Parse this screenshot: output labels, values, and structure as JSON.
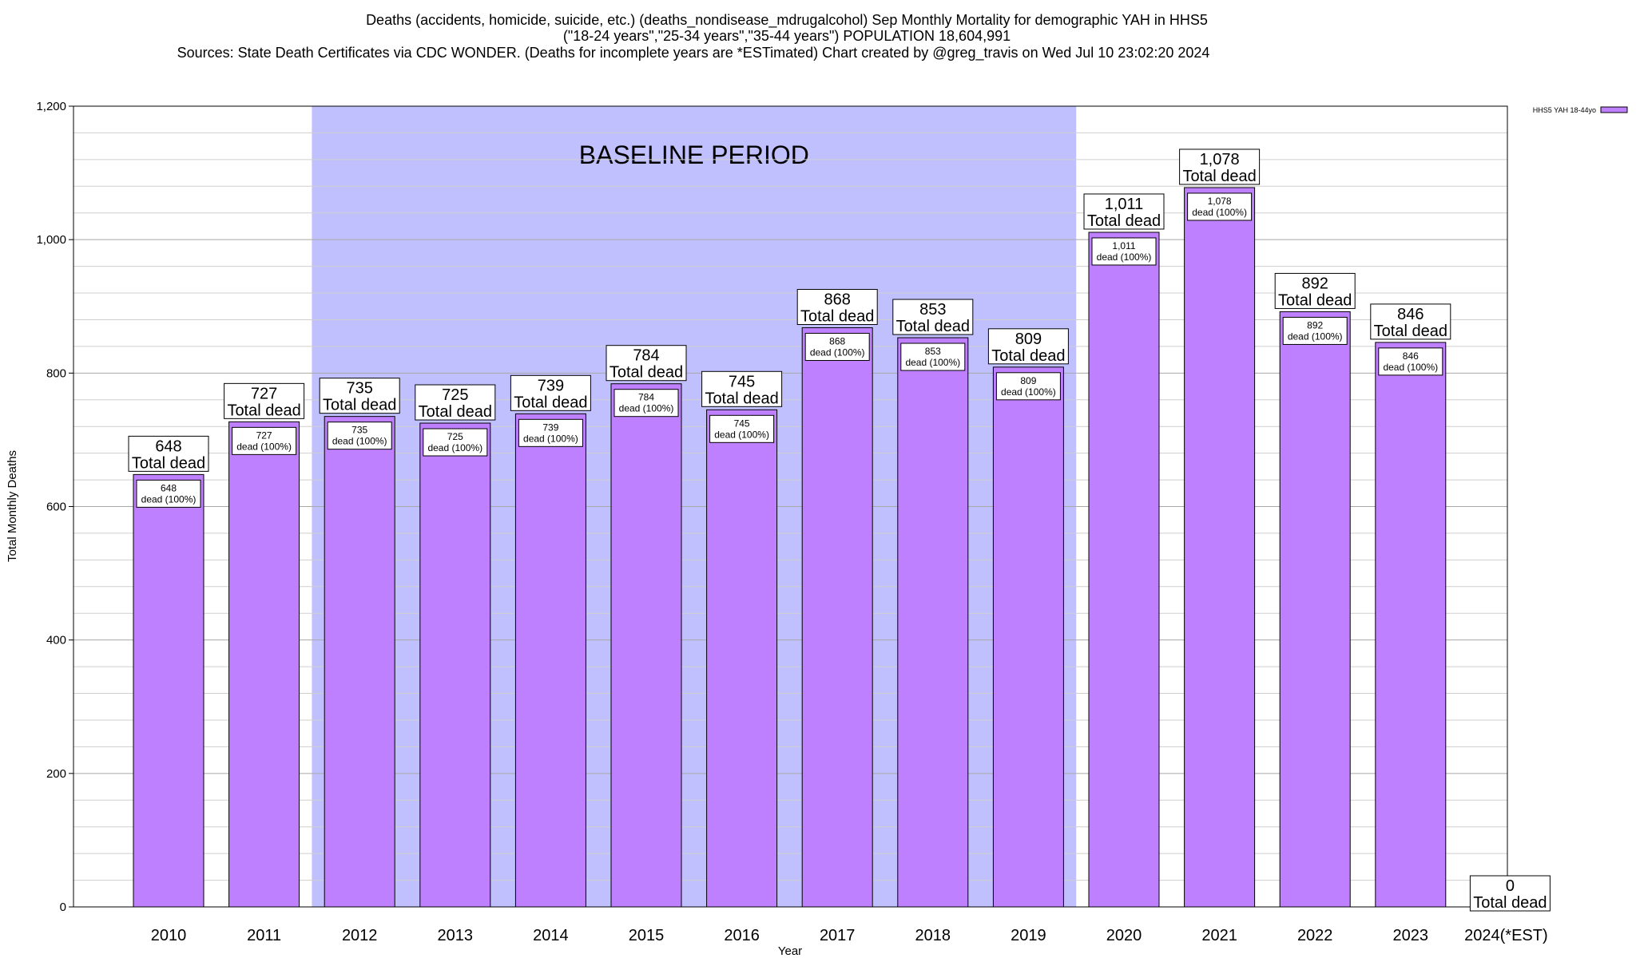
{
  "chart_data": {
    "type": "bar",
    "title_lines": [
      "Deaths (accidents, homicide, suicide, etc.) (deaths_nondisease_mdrugalcohol) Sep Monthly Mortality for demographic YAH in HHS5",
      "(\"18-24 years\",\"25-34 years\",\"35-44 years\") POPULATION 18,604,991",
      "Sources: State Death Certificates via CDC WONDER. (Deaths for incomplete years are *ESTimated)                Chart created by @greg_travis on Wed Jul 10 23:02:20 2024"
    ],
    "xlabel": "Year",
    "ylabel": "Total Monthly Deaths",
    "ylim": [
      0,
      1200
    ],
    "yticks": [
      0,
      200,
      400,
      600,
      800,
      1000,
      1200
    ],
    "ytick_labels": [
      "0",
      "200",
      "400",
      "600",
      "800",
      "1,000",
      "1,200"
    ],
    "minor_grid_step": 40,
    "grid": true,
    "categories": [
      "2010",
      "2011",
      "2012",
      "2013",
      "2014",
      "2015",
      "2016",
      "2017",
      "2018",
      "2019",
      "2020",
      "2021",
      "2022",
      "2023",
      "2024(*EST)"
    ],
    "series": [
      {
        "name": "HHS5 YAH 18-44yo",
        "color": "#bf80ff",
        "values": [
          648,
          727,
          735,
          725,
          739,
          784,
          745,
          868,
          853,
          809,
          1011,
          1078,
          892,
          846,
          0
        ]
      }
    ],
    "value_labels": [
      "648",
      "727",
      "735",
      "725",
      "739",
      "784",
      "745",
      "868",
      "853",
      "809",
      "1,011",
      "1,078",
      "892",
      "846",
      "0"
    ],
    "total_caption": "Total dead",
    "inner_caption": "dead (100%)",
    "baseline": {
      "label": "BASELINE PERIOD",
      "from_category": "2012",
      "to_category": "2019",
      "color": "#c0c0ff"
    },
    "legend_position": "top-right"
  }
}
